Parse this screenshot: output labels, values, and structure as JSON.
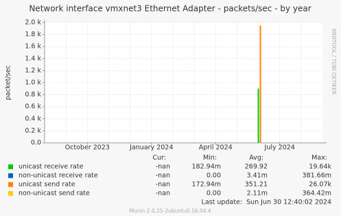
{
  "chart_data": {
    "type": "line",
    "title": "Network interface vmxnet3 Ethernet Adapter - packets/sec - by year",
    "y_label": "packet/sec",
    "x": [
      "2024-06"
    ],
    "xlim": [
      "2023-08",
      "2024-09"
    ],
    "xticks": [
      {
        "value": "2023-10",
        "label": "October 2023"
      },
      {
        "value": "2024-01",
        "label": "January 2024"
      },
      {
        "value": "2024-04",
        "label": "April 2024"
      },
      {
        "value": "2024-07",
        "label": "July 2024"
      }
    ],
    "ylim": [
      0,
      2000
    ],
    "yticks": [
      {
        "value": 0,
        "label": "0.0"
      },
      {
        "value": 200,
        "label": "0.2 k"
      },
      {
        "value": 400,
        "label": "0.4 k"
      },
      {
        "value": 600,
        "label": "0.6 k"
      },
      {
        "value": 800,
        "label": "0.8 k"
      },
      {
        "value": 1000,
        "label": "1.0 k"
      },
      {
        "value": 1200,
        "label": "1.2 k"
      },
      {
        "value": 1400,
        "label": "1.4 k"
      },
      {
        "value": 1600,
        "label": "1.6 k"
      },
      {
        "value": 1800,
        "label": "1.8 k"
      },
      {
        "value": 2000,
        "label": "2.0 k"
      }
    ],
    "grid": true,
    "series": [
      {
        "name": "unicast receive rate",
        "color": "#00cc00",
        "values": [
          900
        ]
      },
      {
        "name": "non-unicast receive rate",
        "color": "#0066b3",
        "values": [
          0
        ]
      },
      {
        "name": "unicast send rate",
        "color": "#ff8000",
        "values": [
          1950
        ]
      },
      {
        "name": "non-unicast send rate",
        "color": "#ffcc00",
        "values": [
          0
        ]
      }
    ]
  },
  "legend_table": {
    "headers": [
      "Cur:",
      "Min:",
      "Avg:",
      "Max:"
    ],
    "rows": [
      [
        "-nan",
        "182.94m",
        "269.92",
        "19.64k"
      ],
      [
        "-nan",
        "0.00",
        "3.41m",
        "381.66m"
      ],
      [
        "-nan",
        "172.94m",
        "351.21",
        "26.07k"
      ],
      [
        "-nan",
        "0.00",
        "2.11m",
        "364.42m"
      ]
    ]
  },
  "last_update": "Last update:  Sun Jun 30 12:40:02 2024",
  "footer": "Munin 2.0.25-2ubuntu0.16.04.4",
  "watermark": "RRDTOOL / TOBI OETIKER"
}
